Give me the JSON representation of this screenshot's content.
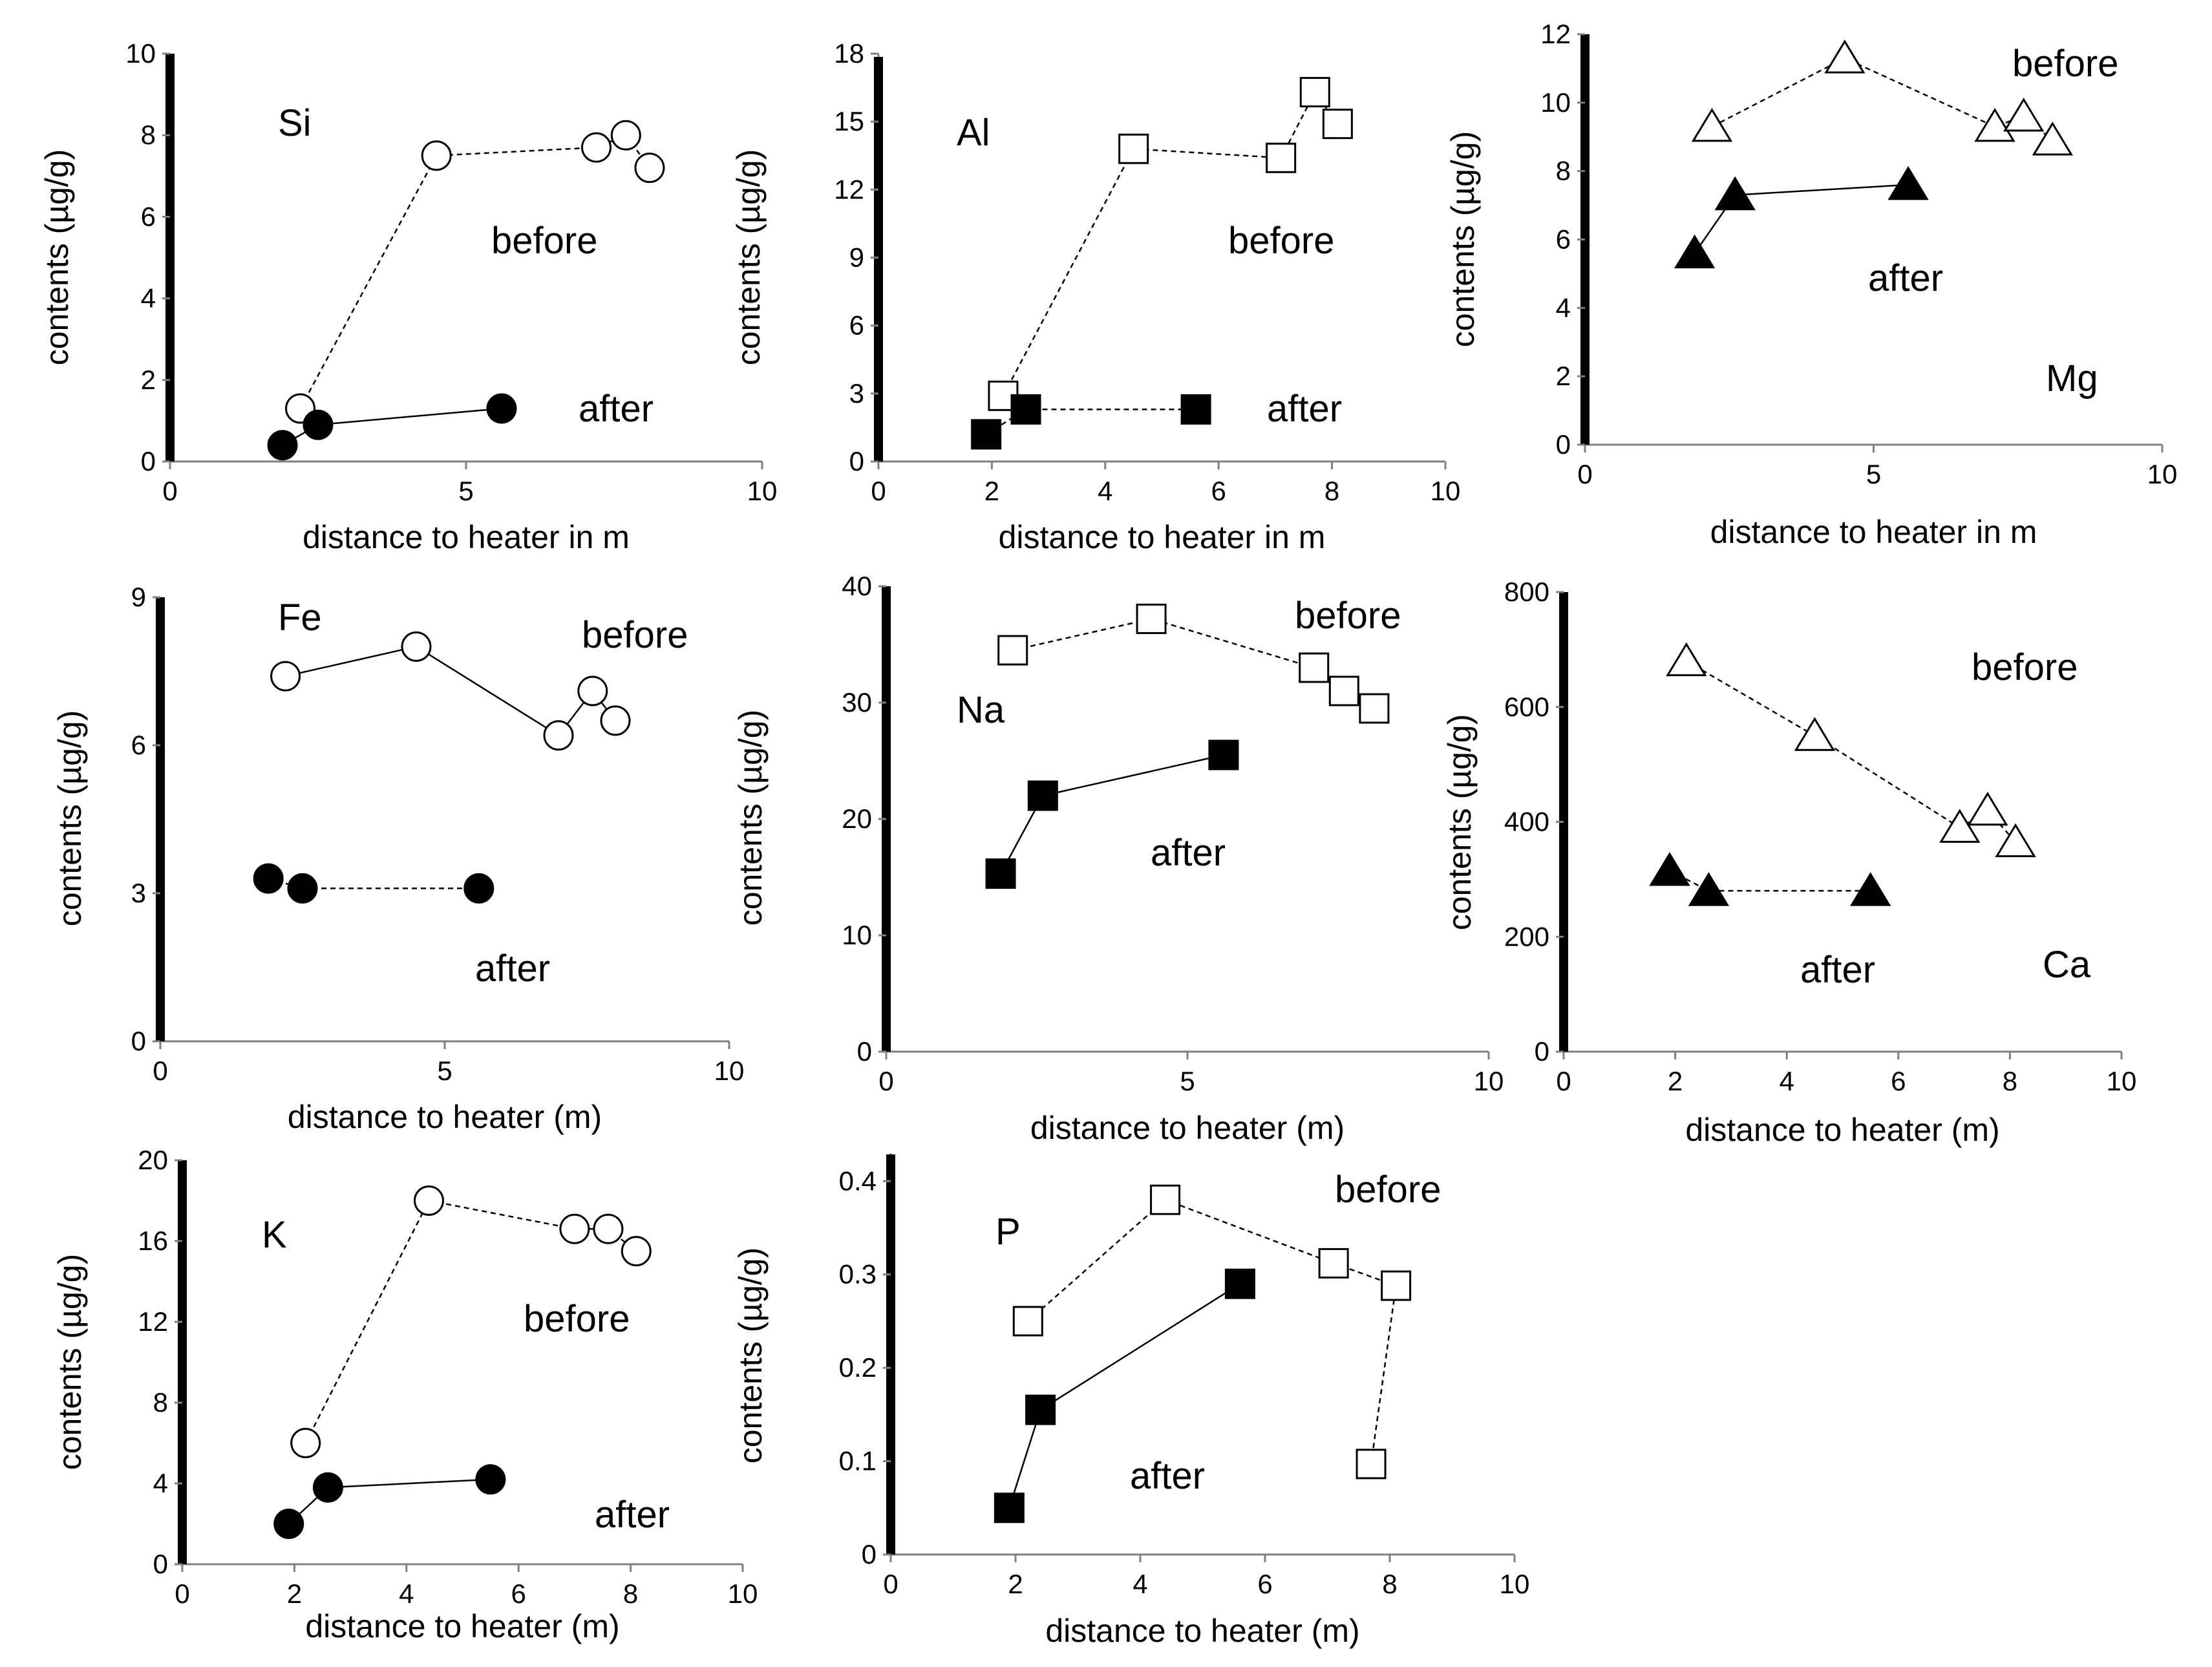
{
  "figure": {
    "legend": {
      "before": "before",
      "after": "after"
    },
    "ylabel": "contents (µg/g)"
  },
  "chart_data": [
    {
      "element": "Si",
      "type": "scatter",
      "marker": "circle",
      "xlabel": "distance to heater in m",
      "ylabel": "contents (µg/g)",
      "xlim": [
        0,
        10
      ],
      "xticks": [
        "0",
        "5",
        "10"
      ],
      "ylim": [
        0,
        10
      ],
      "yticks": [
        "0",
        "2",
        "4",
        "6",
        "8",
        "10"
      ],
      "series": [
        {
          "name": "before",
          "line": "dashed",
          "x": [
            2.2,
            4.5,
            7.2,
            7.7,
            8.1
          ],
          "y": [
            1.3,
            7.5,
            7.7,
            8.0,
            7.2
          ]
        },
        {
          "name": "after",
          "line": "solid",
          "x": [
            1.9,
            2.5,
            5.6
          ],
          "y": [
            0.4,
            0.9,
            1.3
          ]
        }
      ]
    },
    {
      "element": "Al",
      "type": "scatter",
      "marker": "square",
      "xlabel": "distance to heater in m",
      "ylabel": "contents (µg/g)",
      "xlim": [
        0,
        10
      ],
      "xticks": [
        "0",
        "2",
        "4",
        "6",
        "8",
        "10"
      ],
      "ylim": [
        0,
        18
      ],
      "yticks": [
        "0",
        "3",
        "6",
        "9",
        "12",
        "15",
        "18"
      ],
      "series": [
        {
          "name": "before",
          "line": "dashed",
          "x": [
            2.2,
            4.5,
            7.1,
            7.7,
            8.1
          ],
          "y": [
            2.9,
            13.8,
            13.4,
            16.3,
            14.9
          ]
        },
        {
          "name": "after",
          "line": "dashed",
          "x": [
            1.9,
            2.6,
            5.6
          ],
          "y": [
            1.2,
            2.3,
            2.3
          ]
        }
      ]
    },
    {
      "element": "Mg",
      "type": "scatter",
      "marker": "triangle",
      "xlabel": "distance to heater in m",
      "ylabel": "contents (µg/g)",
      "xlim": [
        0,
        10
      ],
      "xticks": [
        "0",
        "5",
        "10"
      ],
      "ylim": [
        0,
        12
      ],
      "yticks": [
        "0",
        "2",
        "4",
        "6",
        "8",
        "10",
        "12"
      ],
      "series": [
        {
          "name": "before",
          "line": "dashed",
          "x": [
            2.2,
            4.5,
            7.1,
            7.6,
            8.1
          ],
          "y": [
            9.3,
            11.3,
            9.3,
            9.6,
            8.9
          ]
        },
        {
          "name": "after",
          "line": "solid",
          "x": [
            1.9,
            2.6,
            5.6
          ],
          "y": [
            5.6,
            7.3,
            7.6
          ]
        }
      ]
    },
    {
      "element": "Fe",
      "type": "scatter",
      "marker": "circle",
      "xlabel": "distance to heater (m)",
      "ylabel": "contents (µg/g)",
      "xlim": [
        0,
        10
      ],
      "xticks": [
        "0",
        "5",
        "10"
      ],
      "ylim": [
        0,
        9
      ],
      "yticks": [
        "0",
        "3",
        "6",
        "9"
      ],
      "series": [
        {
          "name": "before",
          "line": "solid",
          "x": [
            2.2,
            4.5,
            7.0,
            7.6,
            8.0
          ],
          "y": [
            7.4,
            8.0,
            6.2,
            7.1,
            6.5
          ]
        },
        {
          "name": "after",
          "line": "dashed",
          "x": [
            1.9,
            2.5,
            5.6
          ],
          "y": [
            3.3,
            3.1,
            3.1
          ]
        }
      ]
    },
    {
      "element": "Na",
      "type": "scatter",
      "marker": "square",
      "xlabel": "distance to heater (m)",
      "ylabel": "contents  (µg/g)",
      "xlim": [
        0,
        10
      ],
      "xticks": [
        "0",
        "5",
        "10"
      ],
      "ylim": [
        0,
        40
      ],
      "yticks": [
        "0",
        "10",
        "20",
        "30",
        "40"
      ],
      "series": [
        {
          "name": "before",
          "line": "dashed",
          "x": [
            2.1,
            4.4,
            7.1,
            7.6,
            8.1
          ],
          "y": [
            34.5,
            37.2,
            33.0,
            31.0,
            29.5
          ]
        },
        {
          "name": "after",
          "line": "solid",
          "x": [
            1.9,
            2.6,
            5.6
          ],
          "y": [
            15.3,
            22.0,
            25.5
          ]
        }
      ]
    },
    {
      "element": "Ca",
      "type": "scatter",
      "marker": "triangle",
      "xlabel": "distance to heater (m)",
      "ylabel": "contents (µg/g)",
      "xlim": [
        0,
        10
      ],
      "xticks": [
        "0",
        "2",
        "4",
        "6",
        "8",
        "10"
      ],
      "ylim": [
        0,
        800
      ],
      "yticks": [
        "0",
        "200",
        "400",
        "600",
        "800"
      ],
      "series": [
        {
          "name": "before",
          "line": "dashed",
          "x": [
            2.2,
            4.5,
            7.1,
            7.6,
            8.1
          ],
          "y": [
            680,
            550,
            390,
            420,
            365
          ]
        },
        {
          "name": "after",
          "line": "dashed",
          "x": [
            1.9,
            2.6,
            5.5
          ],
          "y": [
            315,
            280,
            280
          ]
        }
      ]
    },
    {
      "element": "K",
      "type": "scatter",
      "marker": "circle",
      "xlabel": "distance to heater (m)",
      "ylabel": "contents (µg/g)",
      "xlim": [
        0,
        10
      ],
      "xticks": [
        "0",
        "2",
        "4",
        "6",
        "8",
        "10"
      ],
      "ylim": [
        0,
        20
      ],
      "yticks": [
        "0",
        "4",
        "8",
        "12",
        "16",
        "20"
      ],
      "series": [
        {
          "name": "before",
          "line": "dashed",
          "x": [
            2.2,
            4.4,
            7.0,
            7.6,
            8.1
          ],
          "y": [
            6.0,
            18.0,
            16.6,
            16.6,
            15.5
          ]
        },
        {
          "name": "after",
          "line": "solid",
          "x": [
            1.9,
            2.6,
            5.5
          ],
          "y": [
            2.0,
            3.8,
            4.2
          ]
        }
      ]
    },
    {
      "element": "P",
      "type": "scatter",
      "marker": "square",
      "xlabel": "distance to heater (m)",
      "ylabel": "contents (µg/g)",
      "xlim": [
        0,
        10
      ],
      "xticks": [
        "0",
        "2",
        "4",
        "6",
        "8",
        "10"
      ],
      "ylim": [
        0,
        0.43
      ],
      "yticks": [
        "0",
        "0.1",
        "0.2",
        "0.3",
        "0.4"
      ],
      "series": [
        {
          "name": "before",
          "line": "dashed",
          "x": [
            2.2,
            4.4,
            7.1,
            8.1,
            7.7
          ],
          "y": [
            0.25,
            0.38,
            0.312,
            0.288,
            0.097
          ]
        },
        {
          "name": "after",
          "line": "solid",
          "x": [
            1.9,
            2.4,
            5.6
          ],
          "y": [
            0.05,
            0.155,
            0.29
          ]
        }
      ]
    }
  ]
}
